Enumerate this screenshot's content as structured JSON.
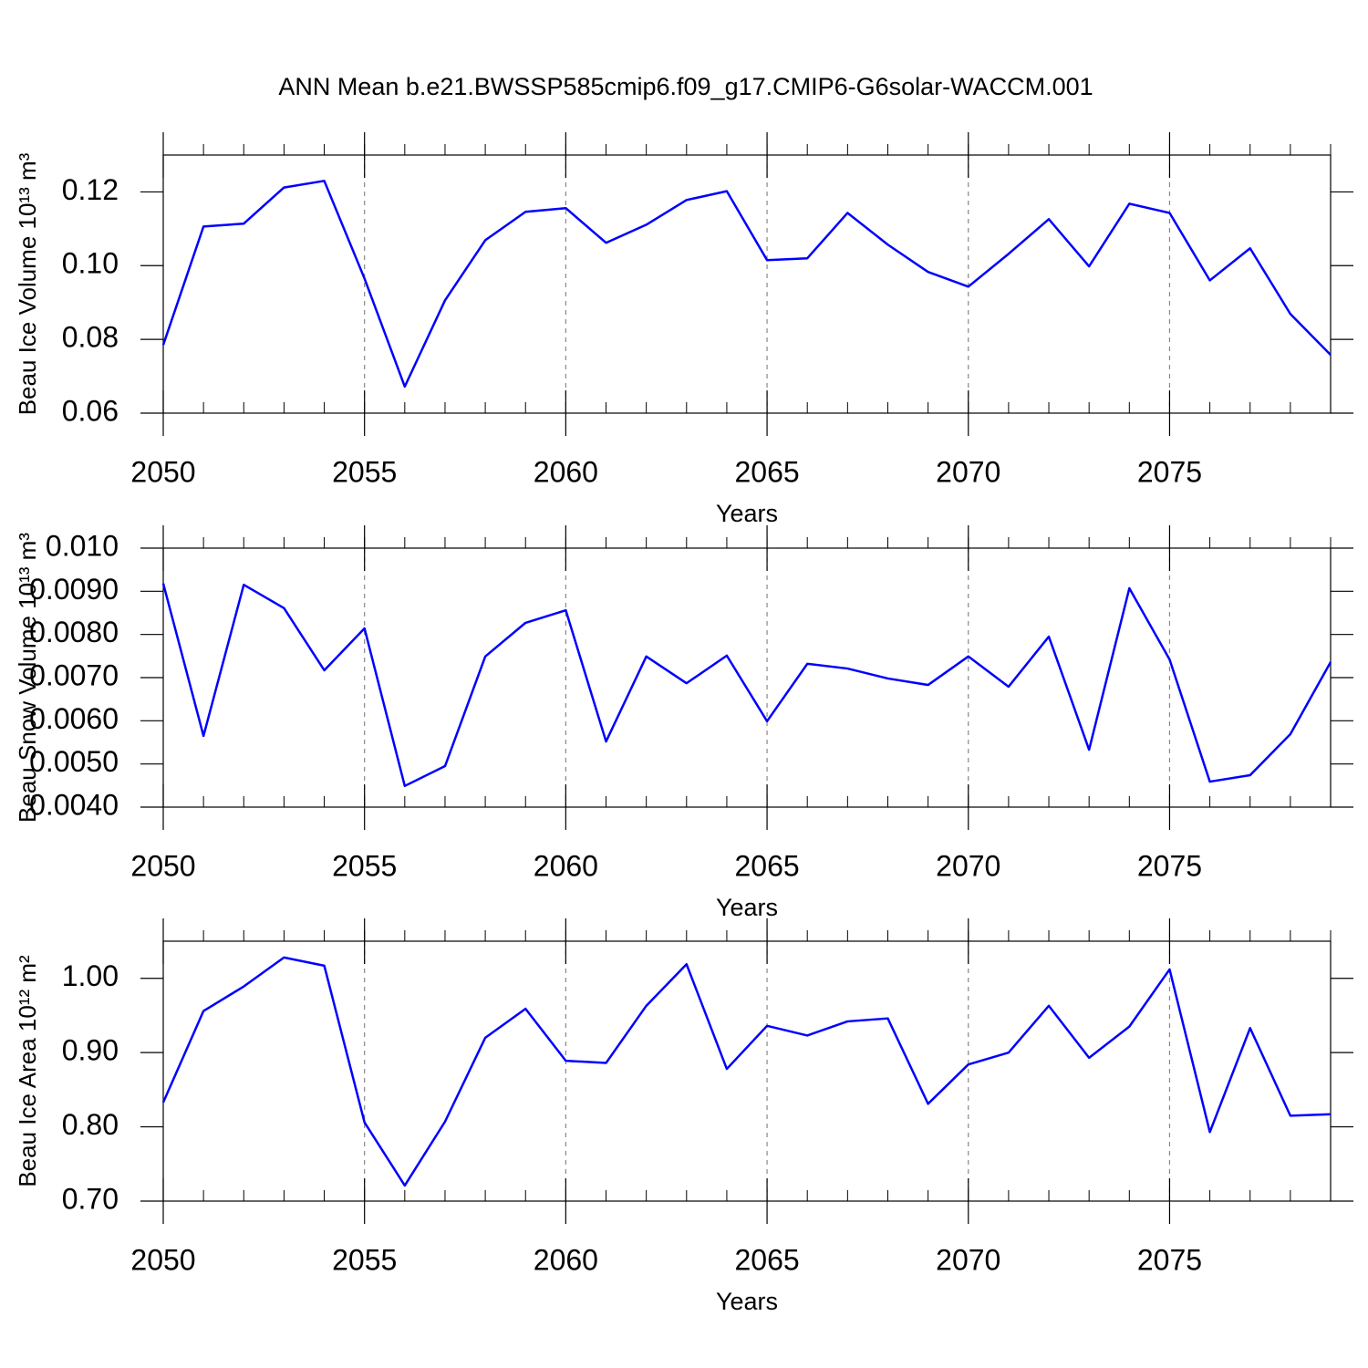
{
  "chart_data": [
    {
      "type": "line",
      "title": "ANN Mean b.e21.BWSSP585cmip6.f09_g17.CMIP6-G6solar-WACCM.001",
      "ylabel": "Beau Ice Volume 10¹³ m³",
      "xlabel": "Years",
      "x": [
        2050,
        2051,
        2052,
        2053,
        2054,
        2055,
        2056,
        2057,
        2058,
        2059,
        2060,
        2061,
        2062,
        2063,
        2064,
        2065,
        2066,
        2067,
        2068,
        2069,
        2070,
        2071,
        2072,
        2073,
        2074,
        2075,
        2076,
        2077,
        2078,
        2079
      ],
      "values": [
        0.0785,
        0.1106,
        0.1114,
        0.1212,
        0.123,
        0.0965,
        0.0672,
        0.0906,
        0.1069,
        0.1146,
        0.1156,
        0.1062,
        0.1111,
        0.1178,
        0.1202,
        0.1015,
        0.102,
        0.1143,
        0.1057,
        0.0983,
        0.0943,
        0.1032,
        0.1126,
        0.0998,
        0.1168,
        0.1143,
        0.096,
        0.1047,
        0.0869,
        0.0758
      ],
      "color": "#0000ff",
      "xlim": [
        2050,
        2079
      ],
      "xticks": [
        2050,
        2055,
        2060,
        2065,
        2070,
        2075
      ],
      "ylim": [
        0.06,
        0.13
      ],
      "yticks": [
        0.06,
        0.08,
        {
          "value": 0.1,
          "label": "0.10"
        },
        0.12
      ],
      "grid": true
    },
    {
      "type": "line",
      "ylabel": "Beau Snow Volume 10¹³ m³",
      "xlabel": "Years",
      "x": [
        2050,
        2051,
        2052,
        2053,
        2054,
        2055,
        2056,
        2057,
        2058,
        2059,
        2060,
        2061,
        2062,
        2063,
        2064,
        2065,
        2066,
        2067,
        2068,
        2069,
        2070,
        2071,
        2072,
        2073,
        2074,
        2075,
        2076,
        2077,
        2078,
        2079
      ],
      "values": [
        0.00918,
        0.00565,
        0.00915,
        0.00861,
        0.00717,
        0.00814,
        0.00449,
        0.00495,
        0.00749,
        0.00827,
        0.00856,
        0.00552,
        0.00749,
        0.00687,
        0.00751,
        0.00599,
        0.00732,
        0.00721,
        0.00698,
        0.00683,
        0.00749,
        0.00679,
        0.00795,
        0.00533,
        0.00907,
        0.00742,
        0.00459,
        0.00474,
        0.00569,
        0.00736
      ],
      "color": "#0000ff",
      "xlim": [
        2050,
        2079
      ],
      "xticks": [
        2050,
        2055,
        2060,
        2065,
        2070,
        2075
      ],
      "ylim": [
        0.004,
        0.01
      ],
      "yticks": [
        {
          "value": 0.004,
          "label": "0.0040"
        },
        {
          "value": 0.005,
          "label": "0.0050"
        },
        {
          "value": 0.006,
          "label": "0.0060"
        },
        {
          "value": 0.007,
          "label": "0.0070"
        },
        {
          "value": 0.008,
          "label": "0.0080"
        },
        {
          "value": 0.009,
          "label": "0.0090"
        },
        {
          "value": 0.01,
          "label": "0.010"
        }
      ],
      "grid": true
    },
    {
      "type": "line",
      "ylabel": "Beau Ice Area 10¹² m²",
      "xlabel": "Years",
      "x": [
        2050,
        2051,
        2052,
        2053,
        2054,
        2055,
        2056,
        2057,
        2058,
        2059,
        2060,
        2061,
        2062,
        2063,
        2064,
        2065,
        2066,
        2067,
        2068,
        2069,
        2070,
        2071,
        2072,
        2073,
        2074,
        2075,
        2076,
        2077,
        2078,
        2079
      ],
      "values": [
        0.833,
        0.956,
        0.989,
        1.028,
        1.017,
        0.806,
        0.721,
        0.807,
        0.92,
        0.959,
        0.889,
        0.886,
        0.963,
        1.019,
        0.878,
        0.936,
        0.923,
        0.942,
        0.946,
        0.831,
        0.884,
        0.9,
        0.963,
        0.893,
        0.935,
        1.012,
        0.793,
        0.933,
        0.815,
        0.817
      ],
      "color": "#0000ff",
      "xlim": [
        2050,
        2079
      ],
      "xticks": [
        2050,
        2055,
        2060,
        2065,
        2070,
        2075
      ],
      "ylim": [
        0.7,
        1.05
      ],
      "yticks": [
        {
          "value": 0.7,
          "label": "0.70"
        },
        {
          "value": 0.8,
          "label": "0.80"
        },
        {
          "value": 0.9,
          "label": "0.90"
        },
        {
          "value": 1.0,
          "label": "1.00"
        }
      ],
      "grid": true
    }
  ]
}
